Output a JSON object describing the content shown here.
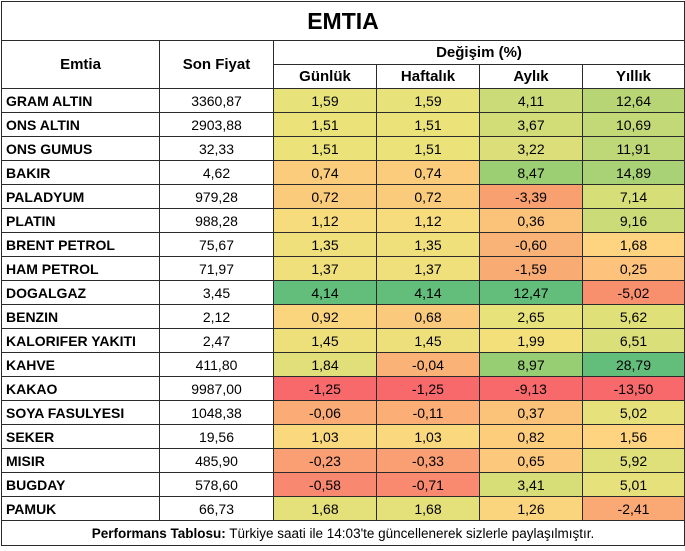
{
  "title": "EMTIA",
  "headers": {
    "commodity": "Emtia",
    "last_price": "Son Fiyat",
    "change": "Değişim (%)",
    "daily": "Günlük",
    "weekly": "Haftalık",
    "monthly": "Aylık",
    "yearly": "Yıllık"
  },
  "rows": [
    {
      "name": "GRAM ALTIN",
      "price": "3360,87",
      "daily": "1,59",
      "weekly": "1,59",
      "monthly": "4,11",
      "yearly": "12,64",
      "colors": [
        "#e8e27a",
        "#e8e27a",
        "#cbdb78",
        "#b8d576"
      ]
    },
    {
      "name": "ONS ALTIN",
      "price": "2903,88",
      "daily": "1,51",
      "weekly": "1,51",
      "monthly": "3,67",
      "yearly": "10,69",
      "colors": [
        "#ebe27a",
        "#ebe27a",
        "#d2dd78",
        "#c3d877"
      ]
    },
    {
      "name": "ONS GUMUS",
      "price": "32,33",
      "daily": "1,51",
      "weekly": "1,51",
      "monthly": "3,22",
      "yearly": "11,91",
      "colors": [
        "#ebe27a",
        "#ebe27a",
        "#dcdf79",
        "#bed777"
      ]
    },
    {
      "name": "BAKIR",
      "price": "4,62",
      "daily": "0,74",
      "weekly": "0,74",
      "monthly": "8,47",
      "yearly": "14,89",
      "colors": [
        "#fbcc7c",
        "#fbcc7c",
        "#9ccf73",
        "#a9d175"
      ]
    },
    {
      "name": "PALADYUM",
      "price": "979,28",
      "daily": "0,72",
      "weekly": "0,72",
      "monthly": "-3,39",
      "yearly": "7,14",
      "colors": [
        "#fbcb7c",
        "#fbcb7c",
        "#f8a070",
        "#d6de78"
      ]
    },
    {
      "name": "PLATIN",
      "price": "988,28",
      "daily": "1,12",
      "weekly": "1,12",
      "monthly": "0,36",
      "yearly": "9,16",
      "colors": [
        "#f7dc7e",
        "#f7dc7e",
        "#fbc37a",
        "#cadb78"
      ]
    },
    {
      "name": "BRENT PETROL",
      "price": "75,67",
      "daily": "1,35",
      "weekly": "1,35",
      "monthly": "-0,60",
      "yearly": "1,68",
      "colors": [
        "#f0e07b",
        "#f0e07b",
        "#fab377",
        "#fed480"
      ]
    },
    {
      "name": "HAM PETROL",
      "price": "71,97",
      "daily": "1,37",
      "weekly": "1,37",
      "monthly": "-1,59",
      "yearly": "0,25",
      "colors": [
        "#efe07b",
        "#efe07b",
        "#f9ab74",
        "#fdc37c"
      ]
    },
    {
      "name": "DOGALGAZ",
      "price": "3,45",
      "daily": "4,14",
      "weekly": "4,14",
      "monthly": "12,47",
      "yearly": "-5,02",
      "colors": [
        "#63be7b",
        "#63be7b",
        "#63be7b",
        "#f8906d"
      ]
    },
    {
      "name": "BENZIN",
      "price": "2,12",
      "daily": "0,92",
      "weekly": "0,68",
      "monthly": "2,65",
      "yearly": "5,62",
      "colors": [
        "#fbd47e",
        "#fbc97c",
        "#e8e27a",
        "#e0e079"
      ]
    },
    {
      "name": "KALORIFER YAKITI",
      "price": "2,47",
      "daily": "1,45",
      "weekly": "1,45",
      "monthly": "1,99",
      "yearly": "6,51",
      "colors": [
        "#ede07b",
        "#ede07b",
        "#f3e07b",
        "#dadf79"
      ]
    },
    {
      "name": "KAHVE",
      "price": "411,80",
      "daily": "1,84",
      "weekly": "-0,04",
      "monthly": "8,97",
      "yearly": "28,79",
      "colors": [
        "#e0df79",
        "#fbb277",
        "#98ce73",
        "#63be7b"
      ]
    },
    {
      "name": "KAKAO",
      "price": "9987,00",
      "daily": "-1,25",
      "weekly": "-1,25",
      "monthly": "-9,13",
      "yearly": "-13,50",
      "colors": [
        "#f8696b",
        "#f8696b",
        "#f8696b",
        "#f8696b"
      ]
    },
    {
      "name": "SOYA FASULYESI",
      "price": "1048,38",
      "daily": "-0,06",
      "weekly": "-0,11",
      "monthly": "0,37",
      "yearly": "5,02",
      "colors": [
        "#fbac76",
        "#fbaf76",
        "#fbc37a",
        "#e6e17a"
      ]
    },
    {
      "name": "SEKER",
      "price": "19,56",
      "daily": "1,03",
      "weekly": "1,03",
      "monthly": "0,82",
      "yearly": "1,56",
      "colors": [
        "#fad87e",
        "#fad87e",
        "#fdcd7c",
        "#fed480"
      ]
    },
    {
      "name": "MISIR",
      "price": "485,90",
      "daily": "-0,23",
      "weekly": "-0,33",
      "monthly": "0,65",
      "yearly": "5,92",
      "colors": [
        "#fa9f73",
        "#fa9f73",
        "#fcc87b",
        "#dfe079"
      ]
    },
    {
      "name": "BUGDAY",
      "price": "578,60",
      "daily": "-0,58",
      "weekly": "-0,71",
      "monthly": "3,41",
      "yearly": "5,01",
      "colors": [
        "#f98870",
        "#f98a70",
        "#d7de78",
        "#e6e17a"
      ]
    },
    {
      "name": "PAMUK",
      "price": "66,73",
      "daily": "1,68",
      "weekly": "1,68",
      "monthly": "1,26",
      "yearly": "-2,41",
      "colors": [
        "#e4e07a",
        "#e4e07a",
        "#fbd47e",
        "#faa974"
      ]
    }
  ],
  "footer": {
    "label": "Performans Tablosu:",
    "text": " Türkiye saati ile 14:03'te güncellenerek sizlerle paylaşılmıştır."
  }
}
